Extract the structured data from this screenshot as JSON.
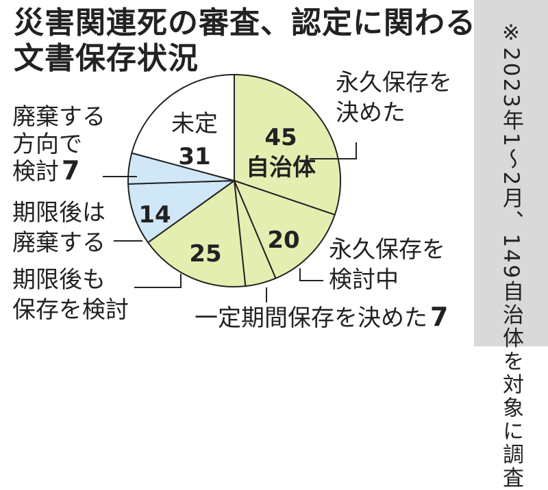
{
  "title": {
    "line1": "災害関連死の審査、認定に関わる",
    "line2": "文書保存状況"
  },
  "note": "※2023年1～2月、149自治体を対象に調査",
  "colors": {
    "green": "#e4eeb1",
    "blue": "#cfe7f7",
    "white": "#ffffff",
    "stroke": "#222222",
    "note_bg": "#d9d9d9"
  },
  "chart_data": {
    "type": "pie",
    "unit": "自治体",
    "start": "12 o'clock, clockwise",
    "slices": [
      {
        "key": "perm_decided",
        "value": 45,
        "value_text": "45",
        "unit_text": "自治体",
        "color": "green",
        "label_lines": [
          "永久保存を",
          "決めた"
        ]
      },
      {
        "key": "perm_considering",
        "value": 20,
        "value_text": "20",
        "color": "green",
        "label_lines": [
          "永久保存を",
          "検討中"
        ]
      },
      {
        "key": "fixed_term",
        "value": 7,
        "color": "green",
        "label_lines": [
          "一定期間保存を決めた",
          "7"
        ]
      },
      {
        "key": "keep_after",
        "value": 25,
        "value_text": "25",
        "color": "green",
        "label_lines": [
          "期限後も",
          "保存を検討"
        ]
      },
      {
        "key": "discard_after",
        "value": 14,
        "value_text": "14",
        "color": "blue",
        "label_lines": [
          "期限後は",
          "廃棄する"
        ]
      },
      {
        "key": "discard_considering",
        "value": 7,
        "color": "blue",
        "label_lines": [
          "廃棄する",
          "方向で",
          "検討",
          "7"
        ]
      },
      {
        "key": "undecided",
        "value": 31,
        "value_text": "31",
        "color": "white",
        "label_lines": [
          "未定"
        ]
      }
    ]
  }
}
